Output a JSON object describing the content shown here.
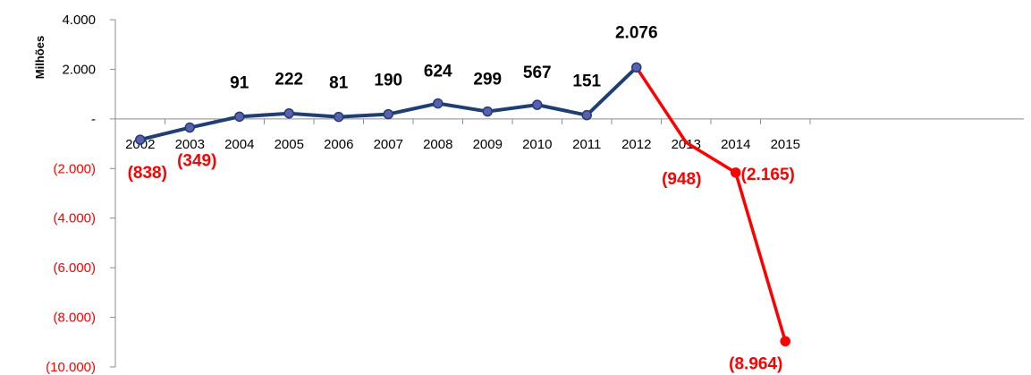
{
  "chart_data": {
    "type": "line",
    "ylabel": "Milhões",
    "ylim": [
      -10000,
      4000
    ],
    "grid": false,
    "categories": [
      "2002",
      "2003",
      "2004",
      "2005",
      "2006",
      "2007",
      "2008",
      "2009",
      "2010",
      "2011",
      "2012",
      "2013",
      "2014",
      "2015"
    ],
    "series": [
      {
        "values": [
          -838,
          -349,
          91,
          222,
          81,
          190,
          624,
          299,
          567,
          151,
          2076,
          -948,
          -2165,
          -8964
        ],
        "labels": [
          "(838)",
          "(349)",
          "91",
          "222",
          "81",
          "190",
          "624",
          "299",
          "567",
          "151",
          "2.076",
          "(948)",
          "(2.165)",
          "(8.964)"
        ]
      }
    ],
    "y_ticks": [
      {
        "value": 4000,
        "label": "4.000"
      },
      {
        "value": 2000,
        "label": "2.000"
      },
      {
        "value": 0,
        "label": "-"
      },
      {
        "value": -2000,
        "label": "(2.000)"
      },
      {
        "value": -4000,
        "label": "(4.000)"
      },
      {
        "value": -6000,
        "label": "(6.000)"
      },
      {
        "value": -8000,
        "label": "(8.000)"
      },
      {
        "value": -10000,
        "label": "(10.000)"
      }
    ],
    "colors": {
      "historical_line": "#1F3F73",
      "historical_marker": "#5B5FAF",
      "projection_line": "#FF0000",
      "positive_text": "#000000",
      "negative_text": "#FF0000",
      "axis": "#8C8C8C"
    }
  }
}
